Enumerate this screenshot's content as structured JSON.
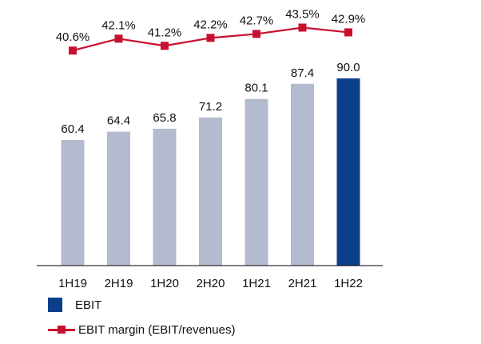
{
  "chart_data": {
    "type": "bar",
    "categories": [
      "1H19",
      "2H19",
      "1H20",
      "2H20",
      "1H21",
      "2H21",
      "1H22"
    ],
    "series": [
      {
        "name": "EBIT",
        "type": "bar",
        "values": [
          60.4,
          64.4,
          65.8,
          71.2,
          80.1,
          87.4,
          90.0
        ],
        "labels": [
          "60.4",
          "64.4",
          "65.8",
          "71.2",
          "80.1",
          "87.4",
          "90.0"
        ]
      },
      {
        "name": "EBIT margin (EBIT/revenues)",
        "type": "line",
        "values": [
          40.6,
          42.1,
          41.2,
          42.2,
          42.7,
          43.5,
          42.9
        ],
        "labels": [
          "40.6%",
          "42.1%",
          "41.2%",
          "42.2%",
          "42.7%",
          "43.5%",
          "42.9%"
        ]
      }
    ],
    "title": "",
    "xlabel": "",
    "ylabel": "",
    "ylim_bars": [
      0,
      100
    ],
    "ylim_line": [
      39,
      45
    ],
    "grid": false,
    "legend_position": "bottom-left",
    "colors": {
      "bar": "#b4bbcf",
      "bar_highlight": "#0b3f8a",
      "line": "#c8102e"
    },
    "highlight_index": 6
  }
}
